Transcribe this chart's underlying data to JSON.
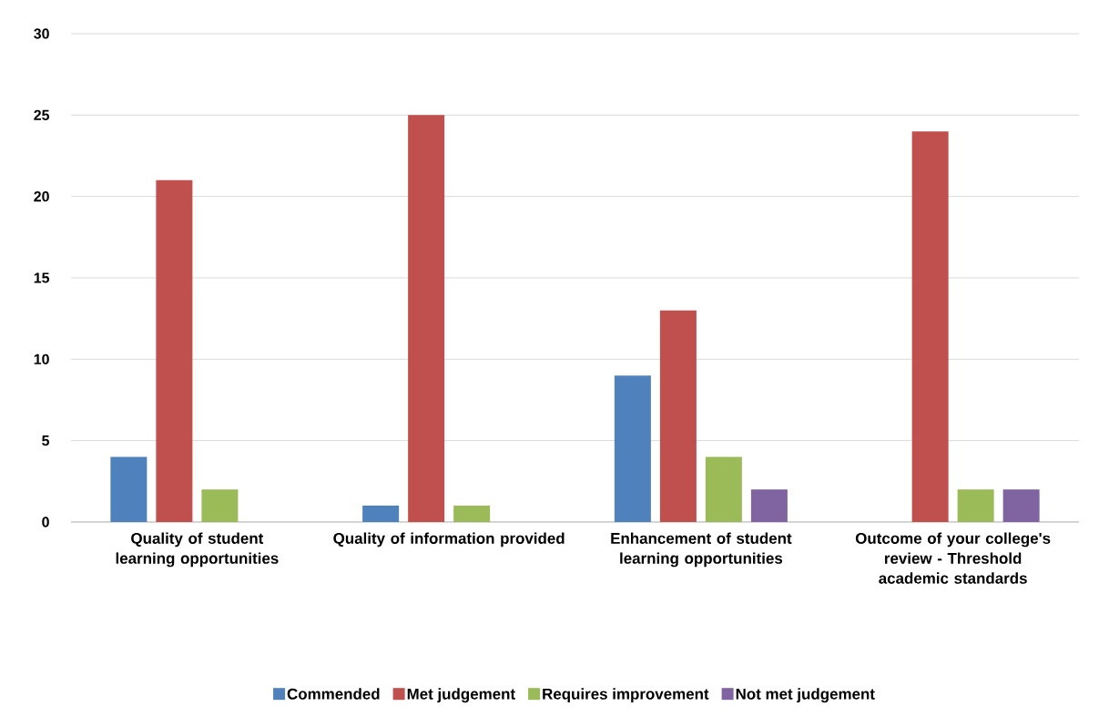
{
  "chart_data": {
    "type": "bar",
    "categories": [
      "Quality of student learning opportunities",
      "Quality of information provided",
      "Enhancement of student learning opportunities",
      "Outcome of your college's review - Threshold academic standards"
    ],
    "series": [
      {
        "name": "Commended",
        "color": "#4f81bd",
        "values": [
          4,
          1,
          9,
          0
        ]
      },
      {
        "name": "Met judgement",
        "color": "#c0504d",
        "values": [
          21,
          25,
          13,
          24
        ]
      },
      {
        "name": "Requires improvement",
        "color": "#9bbb59",
        "values": [
          2,
          1,
          4,
          2
        ]
      },
      {
        "name": "Not met judgement",
        "color": "#8064a2",
        "values": [
          0,
          0,
          2,
          2
        ]
      }
    ],
    "ylim": [
      0,
      30
    ],
    "yticks": [
      0,
      5,
      10,
      15,
      20,
      25,
      30
    ],
    "grid": "y",
    "legend": "bottom"
  }
}
